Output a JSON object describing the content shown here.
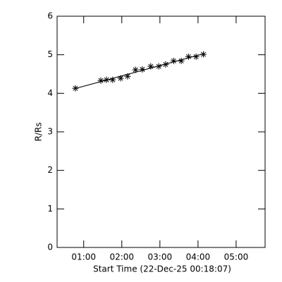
{
  "chart_data": {
    "type": "scatter",
    "xlabel": "Start Time (22-Dec-25 00:18:07)",
    "ylabel": "R/Rs",
    "x": [
      0.783,
      1.45,
      1.6,
      1.76,
      1.97,
      2.15,
      2.36,
      2.54,
      2.76,
      2.97,
      3.15,
      3.36,
      3.56,
      3.75,
      3.95,
      4.14
    ],
    "values": [
      4.13,
      4.33,
      4.35,
      4.35,
      4.39,
      4.44,
      4.61,
      4.62,
      4.7,
      4.7,
      4.75,
      4.84,
      4.84,
      4.95,
      4.95,
      5.01
    ],
    "color": "#000000",
    "fit_line": true,
    "xlim": [
      0.302,
      5.76
    ],
    "xticks": [
      {
        "value": 1,
        "label": "01:00"
      },
      {
        "value": 2,
        "label": "02:00"
      },
      {
        "value": 3,
        "label": "03:00"
      },
      {
        "value": 4,
        "label": "04:00"
      },
      {
        "value": 5,
        "label": "05:00"
      }
    ],
    "ylim": [
      0,
      6
    ],
    "yticks": [
      0,
      1,
      2,
      3,
      4,
      5,
      6
    ]
  }
}
